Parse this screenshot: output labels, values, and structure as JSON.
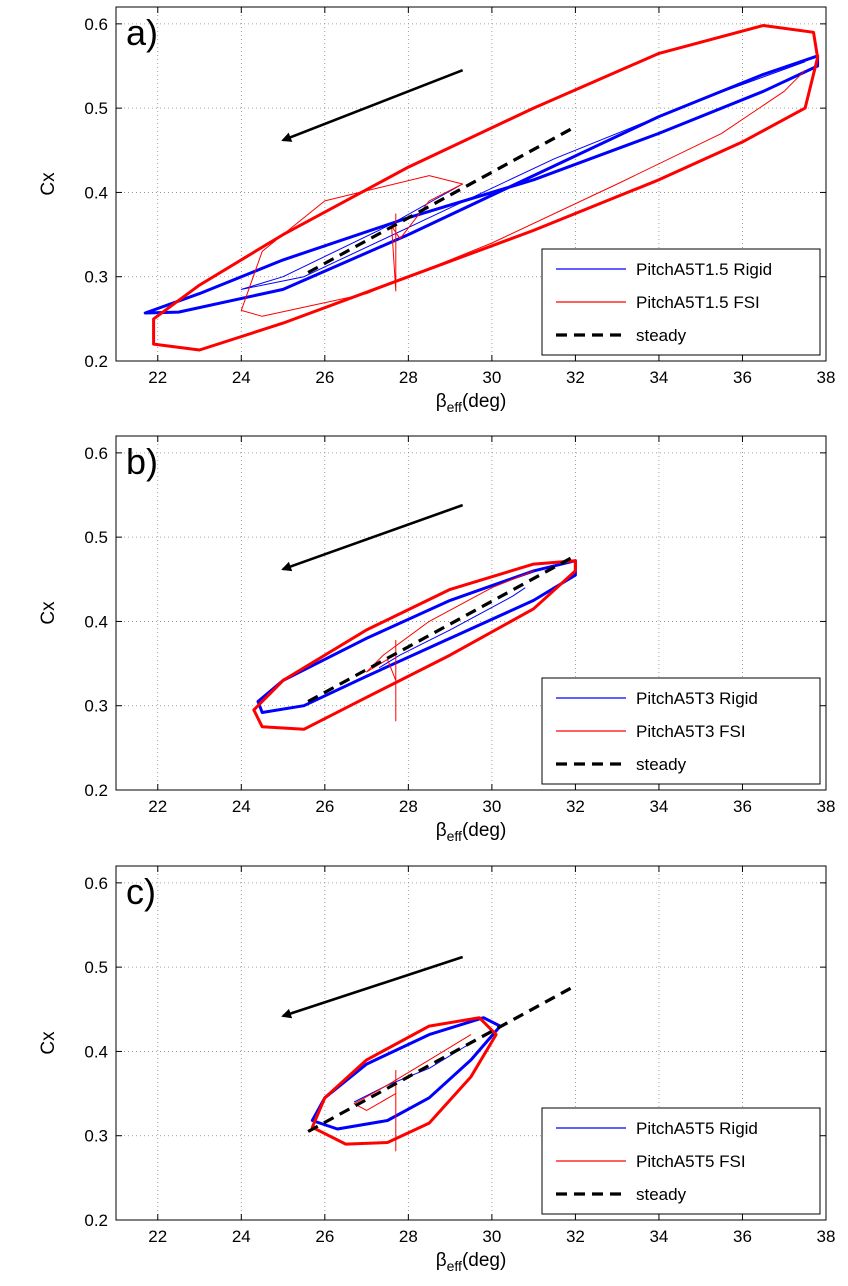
{
  "chart_data": [
    {
      "type": "line",
      "panel_label": "a)",
      "xlabel_main": "β",
      "xlabel_sub": "eff",
      "xlabel_rest": "(deg)",
      "ylabel": "Cx",
      "xlim": [
        21,
        38
      ],
      "ylim": [
        0.2,
        0.62
      ],
      "xticks": [
        22,
        24,
        26,
        28,
        30,
        32,
        34,
        36,
        38
      ],
      "yticks": [
        0.2,
        0.3,
        0.4,
        0.5,
        0.6
      ],
      "xtick_labels": [
        "22",
        "24",
        "26",
        "28",
        "30",
        "32",
        "34",
        "36",
        "38"
      ],
      "ytick_labels": [
        "0.2",
        "0.3",
        "0.4",
        "0.5",
        "0.6"
      ],
      "grid": true,
      "legend_position": "bottom-right",
      "arrow": {
        "from": [
          29.3,
          0.545
        ],
        "to": [
          25.0,
          0.462
        ]
      },
      "series": [
        {
          "name": "PitchA5T1.5 Rigid",
          "color": "#0000ff",
          "role": "loop",
          "points": [
            [
              37.8,
              0.55
            ],
            [
              36.5,
              0.52
            ],
            [
              34,
              0.47
            ],
            [
              31,
              0.415
            ],
            [
              28,
              0.37
            ],
            [
              25,
              0.32
            ],
            [
              23,
              0.28
            ],
            [
              21.7,
              0.257
            ],
            [
              22.5,
              0.258
            ],
            [
              25,
              0.285
            ],
            [
              28,
              0.35
            ],
            [
              31,
              0.42
            ],
            [
              34,
              0.49
            ],
            [
              36.5,
              0.54
            ],
            [
              37.8,
              0.562
            ],
            [
              37.8,
              0.55
            ]
          ],
          "transient": [
            [
              29.3,
              0.41
            ],
            [
              27.5,
              0.36
            ],
            [
              25,
              0.3
            ],
            [
              24,
              0.285
            ],
            [
              25.5,
              0.3
            ],
            [
              28.5,
              0.37
            ],
            [
              31.5,
              0.44
            ],
            [
              35,
              0.51
            ],
            [
              37.5,
              0.555
            ]
          ]
        },
        {
          "name": "PitchA5T1.5 FSI",
          "color": "#ff0000",
          "role": "loop",
          "points": [
            [
              37.5,
              0.5
            ],
            [
              36,
              0.46
            ],
            [
              34,
              0.415
            ],
            [
              31,
              0.355
            ],
            [
              28,
              0.3
            ],
            [
              25,
              0.245
            ],
            [
              23,
              0.213
            ],
            [
              21.9,
              0.22
            ],
            [
              21.9,
              0.25
            ],
            [
              23,
              0.29
            ],
            [
              25,
              0.35
            ],
            [
              28,
              0.43
            ],
            [
              31,
              0.5
            ],
            [
              34,
              0.565
            ],
            [
              36.5,
              0.598
            ],
            [
              37.7,
              0.59
            ],
            [
              37.8,
              0.56
            ],
            [
              37.5,
              0.5
            ]
          ],
          "transient": [
            [
              27.7,
              0.375
            ],
            [
              27.7,
              0.283
            ],
            [
              27.6,
              0.36
            ],
            [
              27.8,
              0.345
            ],
            [
              28.5,
              0.39
            ],
            [
              29.3,
              0.41
            ],
            [
              28.5,
              0.42
            ],
            [
              26,
              0.39
            ],
            [
              24.5,
              0.33
            ],
            [
              24,
              0.26
            ],
            [
              24.5,
              0.253
            ],
            [
              27,
              0.28
            ],
            [
              30,
              0.34
            ],
            [
              33,
              0.41
            ],
            [
              35.5,
              0.47
            ],
            [
              37,
              0.52
            ],
            [
              37.5,
              0.545
            ]
          ]
        },
        {
          "name": "steady",
          "color": "#000000",
          "role": "steady",
          "points": [
            [
              25.6,
              0.305
            ],
            [
              32,
              0.478
            ]
          ]
        }
      ]
    },
    {
      "type": "line",
      "panel_label": "b)",
      "xlabel_main": "β",
      "xlabel_sub": "eff",
      "xlabel_rest": "(deg)",
      "ylabel": "Cx",
      "xlim": [
        21,
        38
      ],
      "ylim": [
        0.2,
        0.62
      ],
      "xticks": [
        22,
        24,
        26,
        28,
        30,
        32,
        34,
        36,
        38
      ],
      "yticks": [
        0.2,
        0.3,
        0.4,
        0.5,
        0.6
      ],
      "xtick_labels": [
        "22",
        "24",
        "26",
        "28",
        "30",
        "32",
        "34",
        "36",
        "38"
      ],
      "ytick_labels": [
        "0.2",
        "0.3",
        "0.4",
        "0.5",
        "0.6"
      ],
      "grid": true,
      "legend_position": "bottom-right",
      "arrow": {
        "from": [
          29.3,
          0.538
        ],
        "to": [
          25.0,
          0.462
        ]
      },
      "series": [
        {
          "name": "PitchA5T3 Rigid",
          "color": "#0000ff",
          "role": "loop",
          "points": [
            [
              32,
              0.455
            ],
            [
              31,
              0.425
            ],
            [
              29,
              0.38
            ],
            [
              27,
              0.335
            ],
            [
              25.5,
              0.3
            ],
            [
              24.5,
              0.292
            ],
            [
              24.4,
              0.305
            ],
            [
              25,
              0.33
            ],
            [
              27,
              0.38
            ],
            [
              29,
              0.425
            ],
            [
              31,
              0.46
            ],
            [
              32,
              0.472
            ],
            [
              32,
              0.455
            ]
          ],
          "transient": [
            [
              27.3,
              0.345
            ],
            [
              27.8,
              0.36
            ],
            [
              29,
              0.39
            ],
            [
              30.5,
              0.43
            ],
            [
              30.8,
              0.44
            ]
          ]
        },
        {
          "name": "PitchA5T3 FSI",
          "color": "#ff0000",
          "role": "loop",
          "points": [
            [
              32,
              0.46
            ],
            [
              31,
              0.415
            ],
            [
              29,
              0.36
            ],
            [
              27,
              0.31
            ],
            [
              25.5,
              0.272
            ],
            [
              24.5,
              0.275
            ],
            [
              24.3,
              0.295
            ],
            [
              25,
              0.33
            ],
            [
              27,
              0.39
            ],
            [
              29,
              0.438
            ],
            [
              31,
              0.468
            ],
            [
              32,
              0.472
            ],
            [
              32,
              0.46
            ]
          ],
          "transient": [
            [
              27.7,
              0.378
            ],
            [
              27.7,
              0.282
            ],
            [
              27.7,
              0.33
            ],
            [
              27.5,
              0.355
            ],
            [
              27,
              0.34
            ],
            [
              27.4,
              0.36
            ],
            [
              28.5,
              0.4
            ],
            [
              30,
              0.44
            ],
            [
              31,
              0.46
            ]
          ]
        },
        {
          "name": "steady",
          "color": "#000000",
          "role": "steady",
          "points": [
            [
              25.6,
              0.305
            ],
            [
              32,
              0.478
            ]
          ]
        }
      ]
    },
    {
      "type": "line",
      "panel_label": "c)",
      "xlabel_main": "β",
      "xlabel_sub": "eff",
      "xlabel_rest": "(deg)",
      "ylabel": "Cx",
      "xlim": [
        21,
        38
      ],
      "ylim": [
        0.2,
        0.62
      ],
      "xticks": [
        22,
        24,
        26,
        28,
        30,
        32,
        34,
        36,
        38
      ],
      "yticks": [
        0.2,
        0.3,
        0.4,
        0.5,
        0.6
      ],
      "xtick_labels": [
        "22",
        "24",
        "26",
        "28",
        "30",
        "32",
        "34",
        "36",
        "38"
      ],
      "ytick_labels": [
        "0.2",
        "0.3",
        "0.4",
        "0.5",
        "0.6"
      ],
      "grid": true,
      "legend_position": "bottom-right",
      "arrow": {
        "from": [
          29.3,
          0.512
        ],
        "to": [
          25.0,
          0.442
        ]
      },
      "series": [
        {
          "name": "PitchA5T5 Rigid",
          "color": "#0000ff",
          "role": "loop",
          "points": [
            [
              30.2,
              0.43
            ],
            [
              29.5,
              0.39
            ],
            [
              28.5,
              0.345
            ],
            [
              27.5,
              0.318
            ],
            [
              26.3,
              0.308
            ],
            [
              25.7,
              0.318
            ],
            [
              26,
              0.345
            ],
            [
              27,
              0.385
            ],
            [
              28.5,
              0.42
            ],
            [
              29.8,
              0.44
            ],
            [
              30.2,
              0.43
            ]
          ],
          "transient": [
            [
              26.7,
              0.34
            ],
            [
              27.5,
              0.36
            ],
            [
              28.5,
              0.38
            ],
            [
              29.5,
              0.41
            ]
          ]
        },
        {
          "name": "PitchA5T5 FSI",
          "color": "#ff0000",
          "role": "loop",
          "points": [
            [
              30.1,
              0.42
            ],
            [
              29.5,
              0.37
            ],
            [
              28.5,
              0.315
            ],
            [
              27.5,
              0.292
            ],
            [
              26.5,
              0.29
            ],
            [
              25.7,
              0.31
            ],
            [
              26,
              0.345
            ],
            [
              27,
              0.39
            ],
            [
              28.5,
              0.43
            ],
            [
              29.7,
              0.44
            ],
            [
              30.1,
              0.42
            ]
          ],
          "transient": [
            [
              27.7,
              0.378
            ],
            [
              27.7,
              0.282
            ],
            [
              27.7,
              0.35
            ],
            [
              27,
              0.33
            ],
            [
              26.7,
              0.338
            ],
            [
              27.5,
              0.36
            ],
            [
              28.5,
              0.39
            ],
            [
              29.5,
              0.42
            ]
          ]
        },
        {
          "name": "steady",
          "color": "#000000",
          "role": "steady",
          "points": [
            [
              25.6,
              0.305
            ],
            [
              32,
              0.478
            ]
          ]
        }
      ]
    }
  ]
}
